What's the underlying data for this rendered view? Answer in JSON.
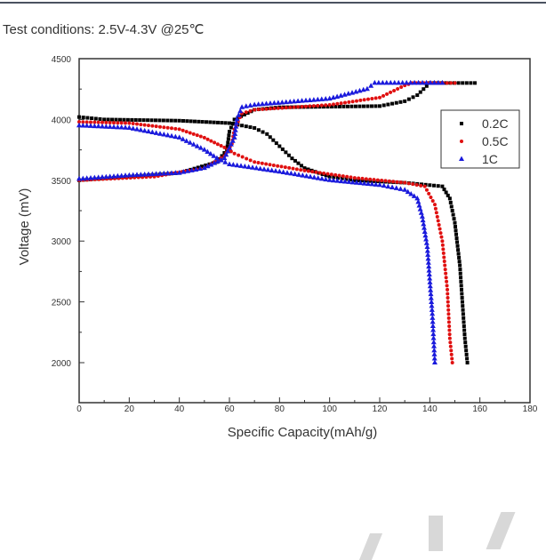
{
  "caption": "Test conditions: 2.5V-4.3V @25℃",
  "chart_data": {
    "type": "scatter",
    "title": "",
    "xlabel": "Specific Capacity(mAh/g)",
    "ylabel": "Voltage (mV)",
    "xlim": [
      0,
      180
    ],
    "ylim": [
      1670,
      4500
    ],
    "xticks": [
      0,
      20,
      40,
      60,
      80,
      100,
      120,
      140,
      160,
      180
    ],
    "yticks": [
      2000,
      2500,
      3000,
      3500,
      4000,
      4500
    ],
    "grid": false,
    "legend_position": "right",
    "series": [
      {
        "name": "0.2C",
        "color": "#000000",
        "marker": "square",
        "charge": [
          [
            0,
            3500
          ],
          [
            20,
            3530
          ],
          [
            40,
            3560
          ],
          [
            55,
            3650
          ],
          [
            59,
            3750
          ],
          [
            60,
            3900
          ],
          [
            62,
            4000
          ],
          [
            70,
            4080
          ],
          [
            80,
            4100
          ],
          [
            120,
            4110
          ],
          [
            130,
            4150
          ],
          [
            135,
            4200
          ],
          [
            140,
            4300
          ],
          [
            158,
            4300
          ]
        ],
        "discharge": [
          [
            0,
            4020
          ],
          [
            10,
            4000
          ],
          [
            40,
            3990
          ],
          [
            60,
            3970
          ],
          [
            70,
            3930
          ],
          [
            75,
            3880
          ],
          [
            80,
            3780
          ],
          [
            85,
            3680
          ],
          [
            90,
            3600
          ],
          [
            100,
            3530
          ],
          [
            110,
            3500
          ],
          [
            130,
            3480
          ],
          [
            145,
            3450
          ],
          [
            148,
            3350
          ],
          [
            150,
            3150
          ],
          [
            152,
            2800
          ],
          [
            153,
            2500
          ],
          [
            154,
            2200
          ],
          [
            155,
            2000
          ]
        ]
      },
      {
        "name": "0.5C",
        "color": "#e01010",
        "marker": "circle",
        "charge": [
          [
            0,
            3500
          ],
          [
            30,
            3530
          ],
          [
            50,
            3600
          ],
          [
            58,
            3700
          ],
          [
            61,
            3800
          ],
          [
            62,
            3920
          ],
          [
            65,
            4050
          ],
          [
            70,
            4080
          ],
          [
            100,
            4120
          ],
          [
            120,
            4180
          ],
          [
            130,
            4280
          ],
          [
            133,
            4300
          ],
          [
            150,
            4300
          ]
        ],
        "discharge": [
          [
            0,
            3980
          ],
          [
            20,
            3970
          ],
          [
            40,
            3920
          ],
          [
            50,
            3850
          ],
          [
            58,
            3770
          ],
          [
            62,
            3720
          ],
          [
            70,
            3650
          ],
          [
            90,
            3580
          ],
          [
            110,
            3520
          ],
          [
            130,
            3480
          ],
          [
            138,
            3450
          ],
          [
            142,
            3300
          ],
          [
            145,
            3000
          ],
          [
            147,
            2600
          ],
          [
            148,
            2200
          ],
          [
            149,
            2000
          ]
        ]
      },
      {
        "name": "1C",
        "color": "#1a1adc",
        "marker": "triangle",
        "charge": [
          [
            0,
            3510
          ],
          [
            20,
            3540
          ],
          [
            40,
            3560
          ],
          [
            50,
            3600
          ],
          [
            58,
            3680
          ],
          [
            62,
            3850
          ],
          [
            63,
            4000
          ],
          [
            65,
            4100
          ],
          [
            70,
            4120
          ],
          [
            100,
            4170
          ],
          [
            115,
            4250
          ],
          [
            118,
            4300
          ],
          [
            145,
            4300
          ]
        ],
        "discharge": [
          [
            0,
            3950
          ],
          [
            20,
            3930
          ],
          [
            40,
            3850
          ],
          [
            50,
            3750
          ],
          [
            55,
            3680
          ],
          [
            60,
            3630
          ],
          [
            80,
            3570
          ],
          [
            100,
            3500
          ],
          [
            120,
            3460
          ],
          [
            130,
            3420
          ],
          [
            135,
            3350
          ],
          [
            137,
            3200
          ],
          [
            139,
            2950
          ],
          [
            141,
            2400
          ],
          [
            142,
            2000
          ]
        ]
      }
    ]
  }
}
